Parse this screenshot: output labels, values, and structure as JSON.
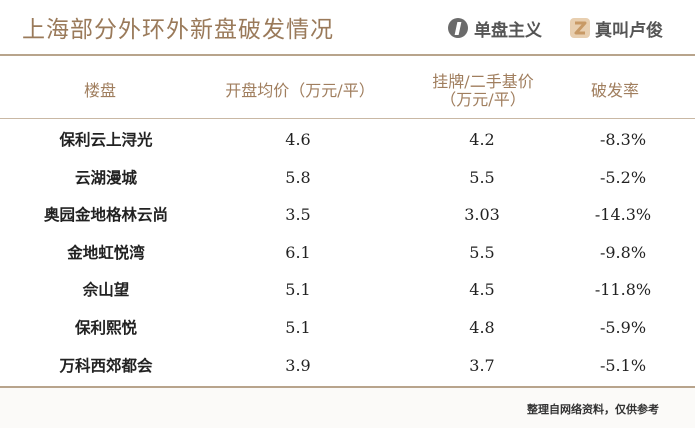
{
  "header": {
    "title": "上海部分外环外新盘破发情况",
    "logo1_text": "单盘主义",
    "logo2_text": "真叫卢俊"
  },
  "table": {
    "headers": {
      "name": "楼盘",
      "open_price": "开盘均价（万元/平）",
      "listing_price_line1": "挂牌/二手基价",
      "listing_price_line2": "（万元/平）",
      "break_rate": "破发率"
    },
    "rows": [
      {
        "name": "保利云上浔光",
        "open_price": "4.6",
        "listing_price": "4.2",
        "break_rate": "-8.3%"
      },
      {
        "name": "云湖漫城",
        "open_price": "5.8",
        "listing_price": "5.5",
        "break_rate": "-5.2%"
      },
      {
        "name": "奥园金地格林云尚",
        "open_price": "3.5",
        "listing_price": "3.03",
        "break_rate": "-14.3%"
      },
      {
        "name": "金地虹悦湾",
        "open_price": "6.1",
        "listing_price": "5.5",
        "break_rate": "-9.8%"
      },
      {
        "name": "佘山望",
        "open_price": "5.1",
        "listing_price": "4.5",
        "break_rate": "-11.8%"
      },
      {
        "name": "保利熙悦",
        "open_price": "5.1",
        "listing_price": "4.8",
        "break_rate": "-5.9%"
      },
      {
        "name": "万科西郊都会",
        "open_price": "3.9",
        "listing_price": "3.7",
        "break_rate": "-5.1%"
      }
    ]
  },
  "footer": {
    "note": "整理自网络资料，仅供参考"
  },
  "colors": {
    "title": "#9a7a5a",
    "header_text": "#a07e5e",
    "rule": "#b8a48c"
  }
}
